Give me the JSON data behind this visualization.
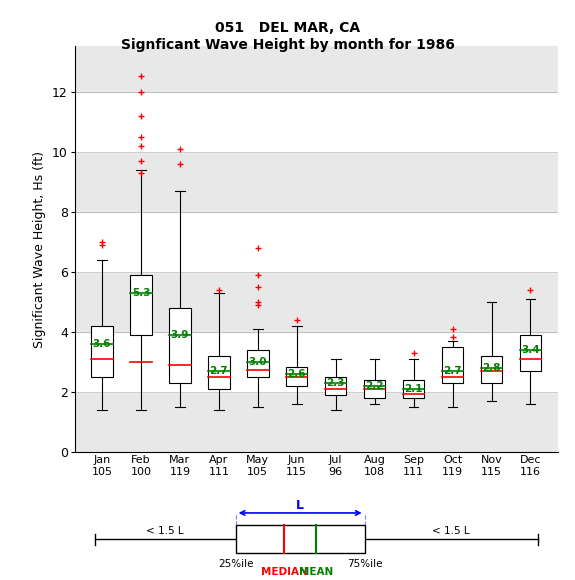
{
  "title1": "051   DEL MAR, CA",
  "title2": "Signficant Wave Height by month for 1986",
  "ylabel": "Significant Wave Height, Hs (ft)",
  "months": [
    "Jan",
    "Feb",
    "Mar",
    "Apr",
    "May",
    "Jun",
    "Jul",
    "Aug",
    "Sep",
    "Oct",
    "Nov",
    "Dec"
  ],
  "counts": [
    105,
    100,
    119,
    111,
    105,
    115,
    96,
    108,
    111,
    119,
    115,
    116
  ],
  "medians": [
    3.1,
    3.0,
    2.9,
    2.5,
    2.75,
    2.5,
    2.1,
    2.1,
    1.95,
    2.5,
    2.7,
    3.1
  ],
  "means": [
    3.6,
    5.3,
    3.9,
    2.7,
    3.0,
    2.6,
    2.3,
    2.2,
    2.1,
    2.7,
    2.8,
    3.4
  ],
  "q1": [
    2.5,
    3.9,
    2.3,
    2.1,
    2.5,
    2.2,
    1.9,
    1.8,
    1.8,
    2.3,
    2.3,
    2.7
  ],
  "q3": [
    4.2,
    5.9,
    4.8,
    3.2,
    3.4,
    2.85,
    2.5,
    2.4,
    2.4,
    3.5,
    3.2,
    3.9
  ],
  "whislo": [
    1.4,
    1.4,
    1.5,
    1.4,
    1.5,
    1.6,
    1.4,
    1.6,
    1.5,
    1.5,
    1.7,
    1.6
  ],
  "whishi": [
    6.4,
    9.4,
    8.7,
    5.3,
    4.1,
    4.2,
    3.1,
    3.1,
    3.1,
    3.7,
    5.0,
    5.1
  ],
  "fliers": [
    [
      6.9,
      7.0
    ],
    [
      12.5,
      12.0,
      11.2,
      10.5,
      10.2,
      9.7,
      9.3
    ],
    [
      10.1,
      9.6
    ],
    [
      5.4
    ],
    [
      6.8,
      5.9,
      5.5,
      5.0,
      4.9
    ],
    [
      4.4
    ],
    [],
    [],
    [
      3.3
    ],
    [
      4.1,
      3.85
    ],
    [],
    [
      5.4
    ]
  ],
  "bg_bands": [
    [
      2,
      4,
      "#ffffff"
    ],
    [
      4,
      6,
      "#e8e8e8"
    ],
    [
      6,
      8,
      "#ffffff"
    ],
    [
      8,
      10,
      "#e8e8e8"
    ],
    [
      10,
      12,
      "#ffffff"
    ],
    [
      12,
      13.5,
      "#e8e8e8"
    ]
  ],
  "plot_bg": "#e8e8e8",
  "ylim": [
    0,
    13.5
  ],
  "yticks": [
    0,
    2,
    4,
    6,
    8,
    10,
    12
  ],
  "box_color": "white",
  "median_color": "red",
  "mean_color": "green",
  "whisker_color": "black",
  "flier_color": "red",
  "box_edge_color": "black"
}
